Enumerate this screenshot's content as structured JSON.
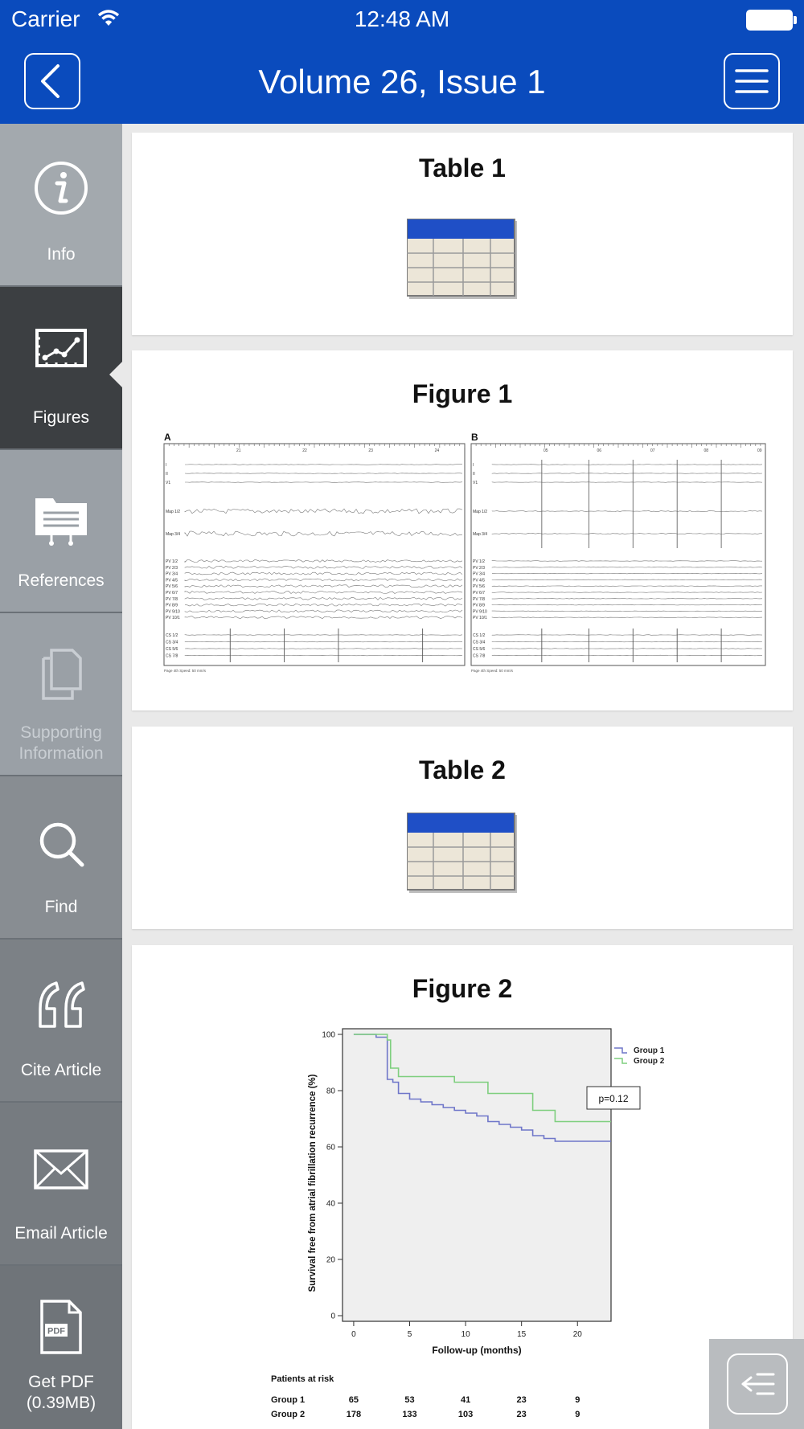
{
  "status": {
    "carrier": "Carrier",
    "time": "12:48 AM"
  },
  "nav": {
    "title": "Volume 26, Issue 1",
    "back_icon": "chevron-left-icon",
    "menu_icon": "hamburger-menu-icon"
  },
  "sidebar": {
    "items": [
      {
        "label": "Info",
        "icon": "info-icon",
        "state": "normal"
      },
      {
        "label": "Figures",
        "icon": "figures-chart-icon",
        "state": "active"
      },
      {
        "label": "References",
        "icon": "folder-references-icon",
        "state": "normal"
      },
      {
        "label": "Supporting Information",
        "icon": "documents-icon",
        "state": "disabled"
      },
      {
        "label": "Find",
        "icon": "search-icon",
        "state": "normal"
      },
      {
        "label": "Cite Article",
        "icon": "quote-icon",
        "state": "normal"
      },
      {
        "label": "Email Article",
        "icon": "envelope-icon",
        "state": "normal"
      },
      {
        "label": "Get PDF",
        "sublabel": "(0.39MB)",
        "icon": "pdf-icon",
        "state": "normal"
      }
    ]
  },
  "cards": {
    "table1": {
      "title": "Table 1"
    },
    "figure1": {
      "title": "Figure 1",
      "panels": [
        "A",
        "B"
      ],
      "channels_top": [
        "I",
        "II",
        "V1"
      ],
      "channels_map": [
        "Map 1/2",
        "Map 3/4"
      ],
      "channels_pv": [
        "PV 1/2",
        "PV 2/3",
        "PV 3/4",
        "PV 4/5",
        "PV 5/6",
        "PV 6/7",
        "PV 7/8",
        "PV 8/9",
        "PV 9/10",
        "PV 10/1"
      ],
      "channels_cs": [
        "CS 1/2",
        "CS 3/4",
        "CS 5/6",
        "CS 7/8"
      ],
      "ticks_a": [
        "21",
        "22",
        "23",
        "24"
      ],
      "ticks_b": [
        "05",
        "06",
        "07",
        "08",
        "09"
      ],
      "footer": "Page 4th   Speed: 50 mm/s"
    },
    "table2": {
      "title": "Table 2"
    },
    "figure2": {
      "title": "Figure 2"
    }
  },
  "chart_data": {
    "type": "line",
    "title": "",
    "xlabel": "Follow-up (months)",
    "ylabel": "Survival free from atrial fibrillation recurrence (%)",
    "xlim": [
      -1,
      23
    ],
    "ylim": [
      -2,
      102
    ],
    "xticks": [
      0,
      5,
      10,
      15,
      20
    ],
    "yticks": [
      0,
      20,
      40,
      60,
      80,
      100
    ],
    "legend_placement": "top-right outside",
    "annotation": "p=0.12",
    "series": [
      {
        "name": "Group 1",
        "color": "#6f76c9",
        "x": [
          0,
          1,
          2,
          3,
          3.5,
          4,
          5,
          6,
          7,
          8,
          9,
          10,
          11,
          12,
          13,
          14,
          15,
          16,
          17,
          18,
          20,
          23
        ],
        "y": [
          100,
          100,
          99,
          84,
          83,
          79,
          77,
          76,
          75,
          74,
          73,
          72,
          71,
          69,
          68,
          67,
          66,
          64,
          63,
          62,
          62,
          62
        ]
      },
      {
        "name": "Group 2",
        "color": "#7fcf7f",
        "x": [
          0,
          1,
          3,
          3.3,
          4,
          9,
          12,
          16,
          18,
          23
        ],
        "y": [
          100,
          100,
          98,
          88,
          85,
          83,
          79,
          73,
          69,
          69
        ]
      }
    ],
    "risk_table": {
      "header": "Patients at risk",
      "rows": [
        {
          "label": "Group 1",
          "values": [
            "65",
            "53",
            "41",
            "23",
            "9"
          ]
        },
        {
          "label": "Group 2",
          "values": [
            "178",
            "133",
            "103",
            "23",
            "9"
          ]
        }
      ]
    }
  }
}
